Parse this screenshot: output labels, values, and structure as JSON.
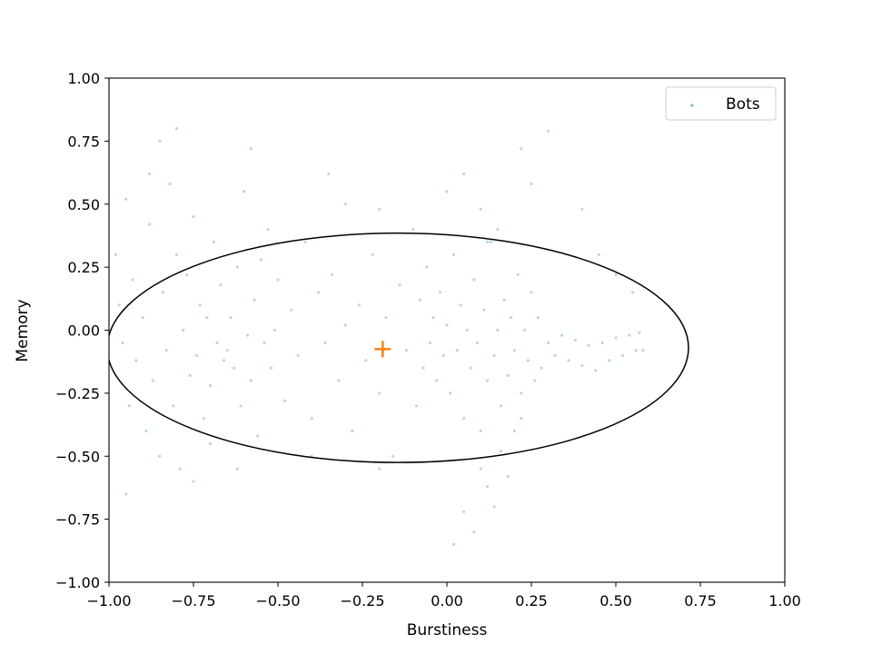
{
  "chart_data": {
    "type": "scatter",
    "xlabel": "Burstiness",
    "ylabel": "Memory",
    "xlim": [
      -1.0,
      1.0
    ],
    "ylim": [
      -1.0,
      1.0
    ],
    "xticks": [
      "−1.00",
      "−0.75",
      "−0.50",
      "−0.25",
      "0.00",
      "0.25",
      "0.50",
      "0.75",
      "1.00"
    ],
    "yticks": [
      "1.00",
      "0.75",
      "0.50",
      "0.25",
      "0.00",
      "−0.25",
      "−0.50",
      "−0.75",
      "−1.00"
    ],
    "grid": false,
    "legend_position": "top-right",
    "series": [
      {
        "name": "Bots",
        "color": "#1f77b4",
        "alpha": 0.3,
        "points": [
          [
            -0.98,
            0.3
          ],
          [
            -0.97,
            0.1
          ],
          [
            -0.96,
            -0.05
          ],
          [
            -0.95,
            0.52
          ],
          [
            -0.94,
            -0.3
          ],
          [
            -0.95,
            -0.65
          ],
          [
            -0.93,
            0.2
          ],
          [
            -0.92,
            -0.12
          ],
          [
            -0.9,
            0.05
          ],
          [
            -0.89,
            -0.4
          ],
          [
            -0.88,
            0.42
          ],
          [
            -0.87,
            -0.2
          ],
          [
            -0.85,
            0.75
          ],
          [
            -0.84,
            0.15
          ],
          [
            -0.83,
            -0.08
          ],
          [
            -0.82,
            0.58
          ],
          [
            -0.81,
            -0.3
          ],
          [
            -0.8,
            0.3
          ],
          [
            -0.79,
            -0.55
          ],
          [
            -0.78,
            0.0
          ],
          [
            -0.77,
            0.22
          ],
          [
            -0.76,
            -0.18
          ],
          [
            -0.75,
            0.45
          ],
          [
            -0.74,
            -0.1
          ],
          [
            -0.73,
            0.1
          ],
          [
            -0.72,
            -0.35
          ],
          [
            -0.71,
            0.05
          ],
          [
            -0.7,
            -0.22
          ],
          [
            -0.69,
            0.35
          ],
          [
            -0.68,
            -0.05
          ],
          [
            -0.67,
            0.18
          ],
          [
            -0.66,
            -0.12
          ],
          [
            -0.65,
            -0.08
          ],
          [
            -0.64,
            0.05
          ],
          [
            -0.63,
            -0.15
          ],
          [
            -0.62,
            0.25
          ],
          [
            -0.61,
            -0.3
          ],
          [
            -0.6,
            0.55
          ],
          [
            -0.59,
            -0.02
          ],
          [
            -0.58,
            -0.2
          ],
          [
            -0.57,
            0.12
          ],
          [
            -0.56,
            -0.42
          ],
          [
            -0.55,
            0.28
          ],
          [
            -0.54,
            -0.05
          ],
          [
            -0.53,
            0.4
          ],
          [
            -0.52,
            -0.15
          ],
          [
            -0.51,
            0.0
          ],
          [
            -0.5,
            0.2
          ],
          [
            -0.48,
            -0.28
          ],
          [
            -0.46,
            0.08
          ],
          [
            -0.44,
            -0.1
          ],
          [
            -0.42,
            0.35
          ],
          [
            -0.4,
            -0.35
          ],
          [
            -0.38,
            0.15
          ],
          [
            -0.36,
            -0.05
          ],
          [
            -0.34,
            0.22
          ],
          [
            -0.32,
            -0.2
          ],
          [
            -0.3,
            0.02
          ],
          [
            -0.28,
            -0.4
          ],
          [
            -0.26,
            0.1
          ],
          [
            -0.24,
            -0.12
          ],
          [
            -0.22,
            0.3
          ],
          [
            -0.2,
            -0.25
          ],
          [
            -0.18,
            0.05
          ],
          [
            -0.16,
            -0.5
          ],
          [
            -0.14,
            0.18
          ],
          [
            -0.12,
            -0.08
          ],
          [
            -0.1,
            0.4
          ],
          [
            -0.09,
            -0.3
          ],
          [
            -0.08,
            0.12
          ],
          [
            -0.07,
            -0.15
          ],
          [
            -0.06,
            0.25
          ],
          [
            -0.05,
            -0.05
          ],
          [
            -0.04,
            0.05
          ],
          [
            -0.03,
            -0.2
          ],
          [
            -0.02,
            0.15
          ],
          [
            -0.01,
            -0.1
          ],
          [
            0.0,
            0.02
          ],
          [
            0.01,
            -0.25
          ],
          [
            0.02,
            0.3
          ],
          [
            0.03,
            -0.08
          ],
          [
            0.04,
            0.1
          ],
          [
            0.05,
            -0.35
          ],
          [
            0.06,
            0.0
          ],
          [
            0.07,
            -0.15
          ],
          [
            0.08,
            0.2
          ],
          [
            0.09,
            -0.05
          ],
          [
            0.1,
            -0.4
          ],
          [
            0.11,
            0.08
          ],
          [
            0.12,
            -0.2
          ],
          [
            0.13,
            0.35
          ],
          [
            0.14,
            -0.1
          ],
          [
            0.15,
            0.0
          ],
          [
            0.16,
            -0.3
          ],
          [
            0.17,
            0.12
          ],
          [
            0.18,
            -0.18
          ],
          [
            0.19,
            0.05
          ],
          [
            0.2,
            -0.08
          ],
          [
            0.21,
            0.22
          ],
          [
            0.22,
            -0.25
          ],
          [
            0.23,
            0.0
          ],
          [
            0.24,
            -0.12
          ],
          [
            0.25,
            0.15
          ],
          [
            0.26,
            -0.2
          ],
          [
            0.27,
            0.05
          ],
          [
            0.28,
            -0.15
          ],
          [
            0.3,
            -0.05
          ],
          [
            0.32,
            -0.1
          ],
          [
            0.34,
            -0.02
          ],
          [
            0.36,
            -0.12
          ],
          [
            0.38,
            -0.04
          ],
          [
            0.4,
            -0.14
          ],
          [
            0.42,
            -0.06
          ],
          [
            0.44,
            -0.16
          ],
          [
            0.46,
            -0.05
          ],
          [
            0.48,
            -0.12
          ],
          [
            0.5,
            -0.03
          ],
          [
            0.52,
            -0.1
          ],
          [
            0.54,
            -0.02
          ],
          [
            0.56,
            -0.08
          ],
          [
            0.57,
            -0.01
          ],
          [
            0.58,
            -0.08
          ],
          [
            0.1,
            -0.55
          ],
          [
            0.12,
            -0.62
          ],
          [
            0.14,
            -0.7
          ],
          [
            0.08,
            -0.8
          ],
          [
            0.05,
            -0.72
          ],
          [
            0.02,
            -0.85
          ],
          [
            0.16,
            -0.48
          ],
          [
            0.2,
            -0.4
          ],
          [
            0.22,
            -0.35
          ],
          [
            0.18,
            -0.58
          ],
          [
            0.0,
            0.55
          ],
          [
            0.05,
            0.62
          ],
          [
            0.1,
            0.48
          ],
          [
            0.15,
            0.4
          ],
          [
            0.25,
            0.58
          ],
          [
            0.3,
            0.79
          ],
          [
            0.22,
            0.72
          ],
          [
            0.12,
            0.35
          ],
          [
            0.4,
            0.48
          ],
          [
            0.45,
            0.3
          ],
          [
            0.5,
            0.22
          ],
          [
            0.55,
            0.15
          ],
          [
            -0.3,
            0.5
          ],
          [
            -0.35,
            0.62
          ],
          [
            -0.2,
            0.48
          ],
          [
            -0.58,
            0.72
          ],
          [
            -0.8,
            0.8
          ],
          [
            -0.88,
            0.62
          ],
          [
            -0.62,
            -0.55
          ],
          [
            -0.7,
            -0.45
          ],
          [
            -0.85,
            -0.5
          ],
          [
            -0.75,
            -0.6
          ],
          [
            -0.4,
            -0.5
          ],
          [
            -0.2,
            -0.55
          ]
        ]
      }
    ],
    "ellipse": {
      "center": [
        -0.145,
        -0.07
      ],
      "radius_x": 0.86,
      "radius_y": 0.455,
      "color": "#000000"
    },
    "centroid_marker": {
      "x": -0.19,
      "y": -0.075,
      "color": "#ff7f0e",
      "shape": "plus"
    }
  }
}
